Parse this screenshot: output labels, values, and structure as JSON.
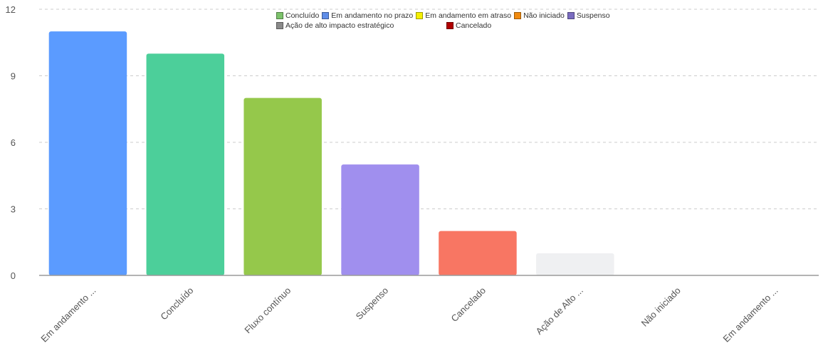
{
  "chart_data": {
    "type": "bar",
    "categories": [
      "Em andamento ...",
      "Concluído",
      "Fluxo contínuo",
      "Suspenso",
      "Cancelado",
      "Ação de Alto ...",
      "Não iniciado",
      "Em andamento ..."
    ],
    "values": [
      11,
      10,
      8,
      5,
      2,
      1,
      0,
      0
    ],
    "bar_colors": [
      "#5b9bff",
      "#4ccf9a",
      "#95c84b",
      "#a08fee",
      "#f87663",
      "#eff0f2",
      "#dddddd",
      "#dddddd"
    ],
    "ylim": [
      0,
      12
    ],
    "yticks": [
      0,
      3,
      6,
      9,
      12
    ],
    "title": "",
    "xlabel": "",
    "ylabel": "",
    "grid": true,
    "legend_position": "top-center",
    "legend": [
      [
        {
          "label": "Concluído",
          "color": "#7cc26b"
        },
        {
          "label": "Em andamento no prazo",
          "color": "#5f8de8"
        },
        {
          "label": "Em andamento em atraso",
          "color": "#f5f000"
        },
        {
          "label": "Não iniciado",
          "color": "#f08a10"
        },
        {
          "label": "Suspenso",
          "color": "#7a6cc0"
        }
      ],
      [
        {
          "label": "Ação de alto impacto estratégico",
          "color": "#8a8a8a"
        },
        {
          "label": "Cancelado",
          "color": "#b00000"
        }
      ]
    ]
  }
}
